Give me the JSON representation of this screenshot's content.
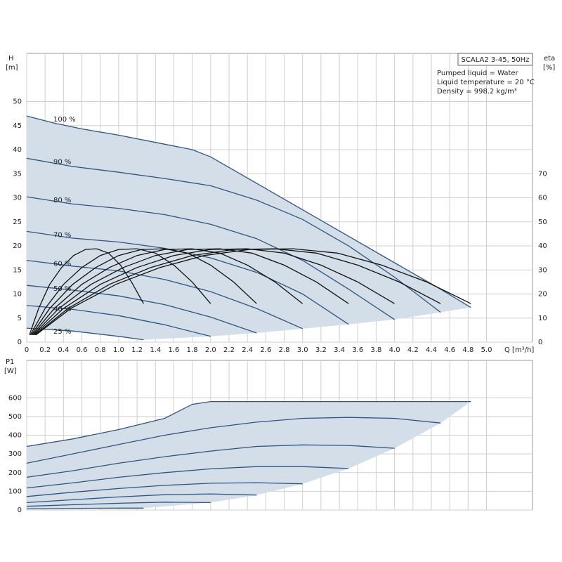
{
  "chart_data": [
    {
      "type": "line",
      "title": "SCALA2 3-45, 50Hz",
      "annotations": [
        "Pumped liquid = Water",
        "Liquid temperature = 20 °C",
        "Density = 998.2 kg/m³"
      ],
      "ylabel": [
        "H",
        "[m]"
      ],
      "y2label": [
        "eta",
        "[%]"
      ],
      "xlabel": "Q [m³/h]",
      "xlim": [
        0,
        5.5
      ],
      "ylim": [
        0,
        60
      ],
      "y2lim": [
        0,
        120
      ],
      "xticks": [
        0,
        0.2,
        0.4,
        0.6,
        0.8,
        {
          "value": 1,
          "label": "1.0"
        },
        1.2,
        1.4,
        1.6,
        1.8,
        {
          "value": 2,
          "label": "2.0"
        },
        2.2,
        2.4,
        2.6,
        2.8,
        {
          "value": 3,
          "label": "3.0"
        },
        3.2,
        3.4,
        3.6,
        3.8,
        {
          "value": 4,
          "label": "4.0"
        },
        4.2,
        4.4,
        4.6,
        4.8,
        {
          "value": 5,
          "label": "5.0"
        }
      ],
      "yticks": [
        0,
        5,
        10,
        15,
        20,
        25,
        30,
        35,
        40,
        45,
        50
      ],
      "y2ticks": [
        0,
        10,
        20,
        30,
        40,
        50,
        60,
        70
      ],
      "grid": true,
      "area_color": "#d3dee9",
      "series": [
        {
          "name": "100 %",
          "color": "#2f5580",
          "x": [
            0,
            0.3,
            0.6,
            1.0,
            1.4,
            1.8,
            2.0,
            2.5,
            3.0,
            3.5,
            4.0,
            4.5,
            4.83
          ],
          "values": [
            47,
            45.5,
            44.3,
            43,
            41.5,
            40,
            38.5,
            33,
            27.5,
            22,
            16.5,
            11,
            7.2
          ]
        },
        {
          "name": "90 %",
          "color": "#2f5580",
          "x": [
            0,
            0.5,
            1.0,
            1.5,
            2.0,
            2.5,
            3.0,
            3.5,
            4.0,
            4.5
          ],
          "values": [
            38.2,
            36.5,
            35.3,
            34,
            32.5,
            29.5,
            25.5,
            20,
            13.5,
            6.2
          ]
        },
        {
          "name": "80 %",
          "color": "#2f5580",
          "x": [
            0,
            0.5,
            1.0,
            1.5,
            2.0,
            2.5,
            3.0,
            3.5,
            4.0
          ],
          "values": [
            30.2,
            28.7,
            27.8,
            26.5,
            24.5,
            21.5,
            17,
            11,
            4.7
          ]
        },
        {
          "name": "70 %",
          "color": "#2f5580",
          "x": [
            0,
            0.5,
            1.0,
            1.5,
            2.0,
            2.5,
            3.0,
            3.5
          ],
          "values": [
            23,
            21.6,
            20.8,
            19.5,
            17.5,
            14.5,
            10,
            3.7
          ]
        },
        {
          "name": "60 %",
          "color": "#2f5580",
          "x": [
            0,
            0.5,
            1.0,
            1.5,
            2.0,
            2.5,
            3.0
          ],
          "values": [
            17,
            15.8,
            14.8,
            13,
            10.5,
            7,
            2.8
          ]
        },
        {
          "name": "50 %",
          "color": "#2f5580",
          "x": [
            0,
            0.5,
            1.0,
            1.5,
            2.0,
            2.5
          ],
          "values": [
            11.8,
            10.8,
            9.6,
            7.8,
            5.2,
            1.9
          ]
        },
        {
          "name": "40 %",
          "color": "#2f5580",
          "x": [
            0,
            0.5,
            1.0,
            1.5,
            2.0
          ],
          "values": [
            7.6,
            6.8,
            5.5,
            3.6,
            1.2
          ]
        },
        {
          "name": "25 %",
          "color": "#2f5580",
          "x": [
            0,
            0.5,
            1.0,
            1.27
          ],
          "values": [
            2.9,
            2.3,
            1.2,
            0.5
          ]
        },
        {
          "axis": "y2",
          "color": "#111111",
          "x": [
            0.03,
            0.13,
            0.25,
            0.38,
            0.51,
            0.64,
            0.76,
            0.89,
            1.02,
            1.14,
            1.27
          ],
          "values": [
            3,
            14,
            24,
            31,
            36,
            38.5,
            38.8,
            37,
            32,
            25,
            16
          ]
        },
        {
          "axis": "y2",
          "color": "#111111",
          "x": [
            0.04,
            0.2,
            0.4,
            0.6,
            0.8,
            1.0,
            1.2,
            1.4,
            1.6,
            1.8,
            2.0
          ],
          "values": [
            3,
            14,
            24,
            31,
            36,
            38.5,
            38.8,
            37,
            32,
            25,
            16
          ]
        },
        {
          "axis": "y2",
          "color": "#111111",
          "x": [
            0.05,
            0.25,
            0.5,
            0.75,
            1.0,
            1.25,
            1.5,
            1.75,
            2.0,
            2.25,
            2.5
          ],
          "values": [
            3,
            14,
            24,
            31,
            36,
            38.5,
            38.8,
            37,
            32,
            25,
            16
          ]
        },
        {
          "axis": "y2",
          "color": "#111111",
          "x": [
            0.06,
            0.3,
            0.6,
            0.9,
            1.2,
            1.5,
            1.8,
            2.1,
            2.4,
            2.7,
            3.0
          ],
          "values": [
            3,
            14,
            24,
            31,
            36,
            38.5,
            38.8,
            37,
            32,
            25,
            16
          ]
        },
        {
          "axis": "y2",
          "color": "#111111",
          "x": [
            0.07,
            0.35,
            0.7,
            1.05,
            1.4,
            1.75,
            2.1,
            2.45,
            2.8,
            3.15,
            3.5
          ],
          "values": [
            3,
            14,
            24,
            31,
            36,
            38.5,
            38.8,
            37,
            32,
            25,
            16
          ]
        },
        {
          "axis": "y2",
          "color": "#111111",
          "x": [
            0.08,
            0.4,
            0.8,
            1.2,
            1.6,
            2.0,
            2.4,
            2.8,
            3.2,
            3.6,
            4.0
          ],
          "values": [
            3,
            14,
            24,
            31,
            36,
            38.5,
            38.8,
            37,
            32,
            25,
            16
          ]
        },
        {
          "axis": "y2",
          "color": "#111111",
          "x": [
            0.09,
            0.45,
            0.9,
            1.35,
            1.8,
            2.25,
            2.7,
            3.15,
            3.6,
            4.05,
            4.5
          ],
          "values": [
            3,
            14,
            24,
            31,
            36,
            38.5,
            38.8,
            37,
            32,
            25,
            16
          ]
        },
        {
          "axis": "y2",
          "color": "#111111",
          "x": [
            0.1,
            0.48,
            0.97,
            1.45,
            1.93,
            2.42,
            2.9,
            3.38,
            3.86,
            4.35,
            4.83
          ],
          "values": [
            3,
            14,
            24,
            31,
            36,
            38.5,
            38.8,
            37,
            32,
            25,
            16
          ]
        }
      ]
    },
    {
      "type": "line",
      "ylabel": [
        "P1",
        "[W]"
      ],
      "xlim": [
        0,
        5.5
      ],
      "ylim": [
        0,
        800
      ],
      "yticks": [
        0,
        100,
        200,
        300,
        400,
        500,
        600
      ],
      "grid": true,
      "area_color": "#d3dee9",
      "series": [
        {
          "color": "#2f5580",
          "x": [
            0,
            0.5,
            1.0,
            1.5,
            1.8,
            2.0,
            3.0,
            4.0,
            4.83
          ],
          "values": [
            340,
            380,
            430,
            490,
            565,
            580,
            580,
            580,
            580
          ]
        },
        {
          "color": "#2f5580",
          "x": [
            0,
            0.5,
            1.0,
            1.5,
            2.0,
            2.5,
            3.0,
            3.5,
            4.0,
            4.5
          ],
          "values": [
            250,
            300,
            350,
            400,
            440,
            470,
            490,
            495,
            490,
            465
          ]
        },
        {
          "color": "#2f5580",
          "x": [
            0,
            0.5,
            1.0,
            1.5,
            2.0,
            2.5,
            3.0,
            3.5,
            4.0
          ],
          "values": [
            175,
            210,
            250,
            285,
            315,
            340,
            348,
            345,
            330
          ]
        },
        {
          "color": "#2f5580",
          "x": [
            0,
            0.5,
            1.0,
            1.5,
            2.0,
            2.5,
            3.0,
            3.5
          ],
          "values": [
            118,
            145,
            175,
            200,
            220,
            232,
            232,
            222
          ]
        },
        {
          "color": "#2f5580",
          "x": [
            0,
            0.5,
            1.0,
            1.5,
            2.0,
            2.5,
            3.0
          ],
          "values": [
            72,
            95,
            115,
            132,
            143,
            146,
            140
          ]
        },
        {
          "color": "#2f5580",
          "x": [
            0,
            0.5,
            1.0,
            1.5,
            2.0,
            2.5
          ],
          "values": [
            40,
            55,
            70,
            82,
            86,
            80
          ]
        },
        {
          "color": "#2f5580",
          "x": [
            0,
            0.5,
            1.0,
            1.5,
            2.0
          ],
          "values": [
            20,
            28,
            36,
            42,
            40
          ]
        },
        {
          "color": "#2f5580",
          "x": [
            0,
            0.5,
            1.0,
            1.27
          ],
          "values": [
            6,
            9,
            10,
            10
          ]
        }
      ]
    }
  ]
}
